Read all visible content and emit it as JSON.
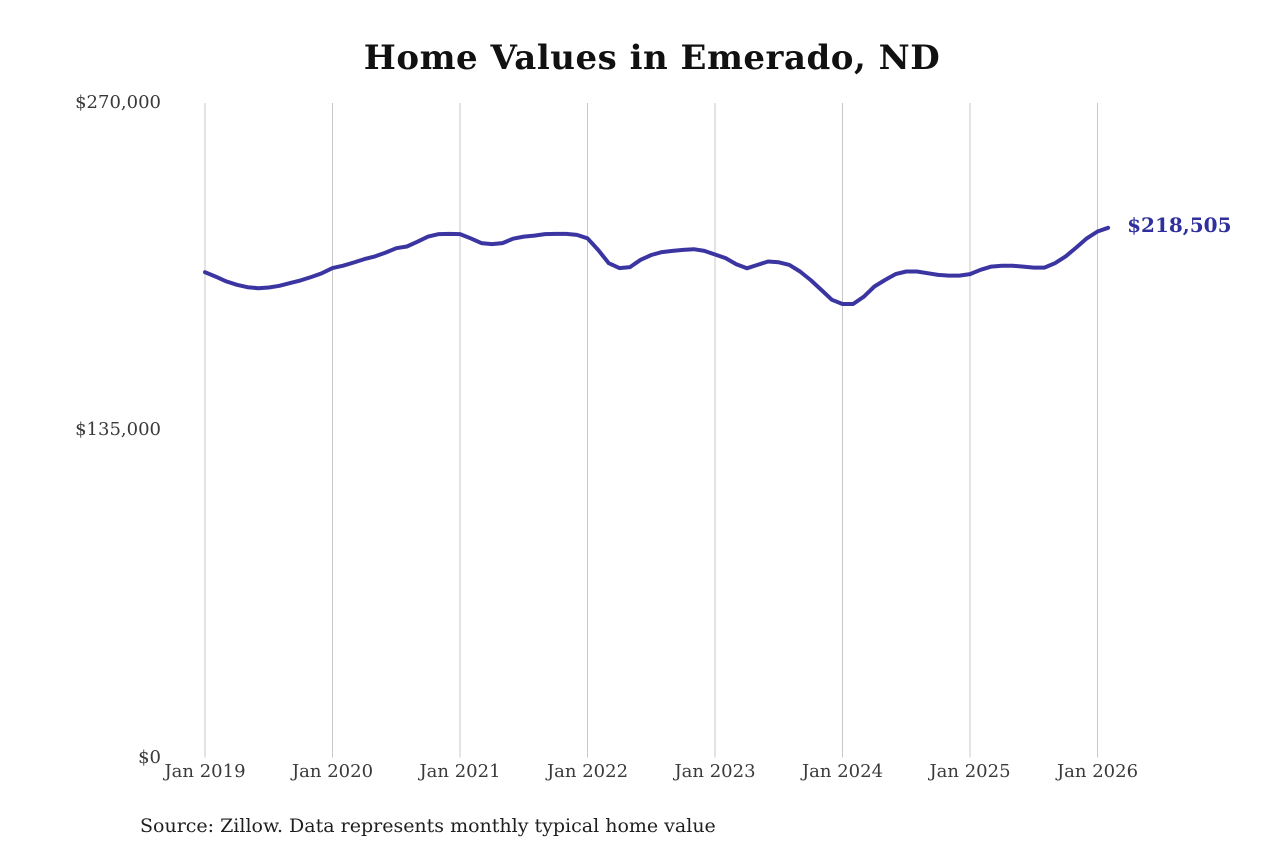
{
  "chart": {
    "title": "Home Values in Emerado, ND",
    "end_label": "$218,505",
    "source": "Source: Zillow. Data represents monthly typical home value"
  },
  "chart_data": {
    "type": "line",
    "title": "Home Values in Emerado, ND",
    "series_name": "Monthly typical home value",
    "x_start": "2019-01",
    "x_interval": "monthly",
    "x_ticks": [
      {
        "label": "Jan 2019",
        "month_index": 0
      },
      {
        "label": "Jan 2020",
        "month_index": 12
      },
      {
        "label": "Jan 2021",
        "month_index": 24
      },
      {
        "label": "Jan 2022",
        "month_index": 36
      },
      {
        "label": "Jan 2023",
        "month_index": 48
      },
      {
        "label": "Jan 2024",
        "month_index": 60
      },
      {
        "label": "Jan 2025",
        "month_index": 72
      },
      {
        "label": "Jan 2026",
        "month_index": 84
      }
    ],
    "y_ticks": [
      {
        "label": "$0",
        "value": 0
      },
      {
        "label": "$135,000",
        "value": 135000
      },
      {
        "label": "$270,000",
        "value": 270000
      }
    ],
    "ylim": [
      0,
      270000
    ],
    "grid": "vertical-only",
    "legend": "none",
    "line_color": "#3b35a2",
    "grid_color": "#c8c8c8",
    "end_label": "$218,505",
    "end_value": 218505,
    "values": [
      200200,
      198400,
      196400,
      195000,
      194000,
      193600,
      193900,
      194600,
      195700,
      196800,
      198200,
      199800,
      201900,
      202900,
      204200,
      205600,
      206700,
      208300,
      210100,
      210800,
      212800,
      214900,
      215900,
      216000,
      215900,
      214200,
      212200,
      211800,
      212200,
      214000,
      214900,
      215300,
      215900,
      216000,
      216000,
      215600,
      214200,
      209400,
      203900,
      201900,
      202300,
      205300,
      207300,
      208500,
      209000,
      209400,
      209700,
      209000,
      207500,
      206000,
      203500,
      201800,
      203200,
      204600,
      204300,
      203200,
      200500,
      197000,
      192900,
      188800,
      187100,
      187100,
      190100,
      194300,
      197000,
      199400,
      200500,
      200500,
      199800,
      199100,
      198800,
      198800,
      199400,
      201200,
      202500,
      202900,
      202900,
      202500,
      202100,
      202100,
      203900,
      206700,
      210400,
      214200,
      217000,
      218505
    ],
    "source": "Source: Zillow. Data represents monthly typical home value"
  }
}
